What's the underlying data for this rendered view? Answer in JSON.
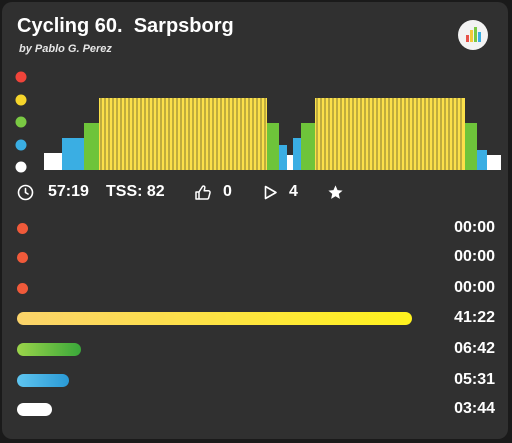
{
  "header": {
    "title": "Cycling 60.  Sarpsborg",
    "author": "by Pablo G. Perez"
  },
  "chart_data": {
    "type": "bar",
    "legend_colors": [
      "#f0443a",
      "#f5d52b",
      "#7ac943",
      "#3aaee3",
      "#ffffff"
    ],
    "segments": [
      {
        "zone": 4,
        "level": 0.17
      },
      {
        "zone": 3,
        "level": 0.32
      },
      {
        "zone": 2,
        "level": 0.47
      },
      {
        "zone": 1,
        "level": 0.72
      },
      {
        "zone": 1,
        "level": 0.72
      },
      {
        "zone": 2,
        "level": 0.47
      },
      {
        "zone": 3,
        "level": 0.25
      },
      {
        "zone": 4,
        "level": 0.15
      },
      {
        "zone": 3,
        "level": 0.32
      },
      {
        "zone": 2,
        "level": 0.47
      },
      {
        "zone": 1,
        "level": 0.72
      },
      {
        "zone": 2,
        "level": 0.47
      },
      {
        "zone": 3,
        "level": 0.2
      },
      {
        "zone": 4,
        "level": 0.15
      }
    ]
  },
  "stats": {
    "duration": "57:19",
    "tss": "TSS: 82",
    "likes": "0",
    "plays": "4"
  },
  "zones": [
    {
      "color": "#f05a3a",
      "fraction": 0,
      "time": "00:00"
    },
    {
      "color": "#f05a3a",
      "fraction": 0,
      "time": "00:00"
    },
    {
      "color": "#f05a3a",
      "fraction": 0,
      "time": "00:00"
    },
    {
      "color": "#fbe04a",
      "fraction": 0.603,
      "time": "41:22"
    },
    {
      "color": "#6ec43a",
      "fraction": 0.098,
      "time": "06:42"
    },
    {
      "color": "#3aaee3",
      "fraction": 0.08,
      "time": "05:31"
    },
    {
      "color": "#ffffff",
      "fraction": 0.054,
      "time": "03:44"
    }
  ]
}
